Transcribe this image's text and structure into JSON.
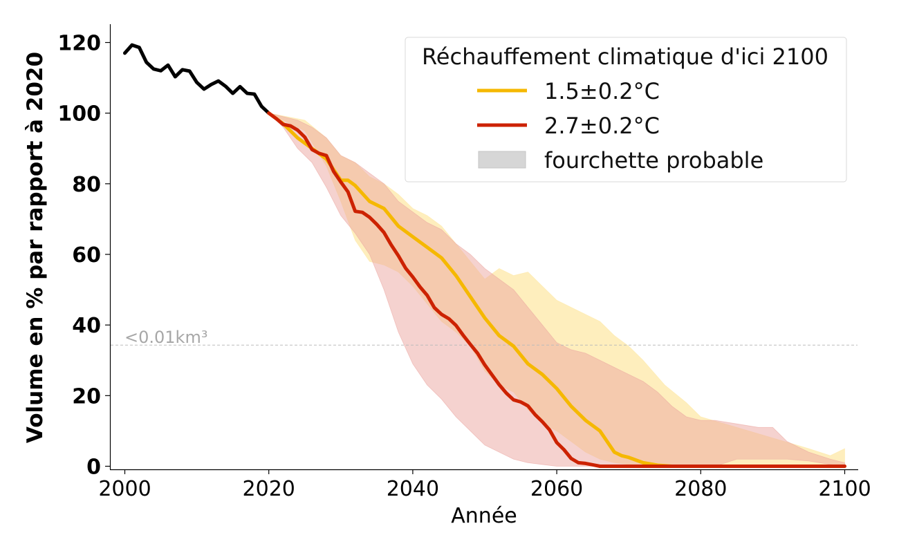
{
  "colors": {
    "historical": "#000000",
    "scenario_15": "#f5b800",
    "scenario_27": "#cc2200",
    "band_15": "#fde7a3",
    "band_27": "#eba5a0",
    "legend_band": "#d6d6d6",
    "threshold": "#bbbbbb"
  },
  "threshold": {
    "label": "<0.01km³",
    "value": 34.3
  },
  "chart_data": {
    "type": "line",
    "title": "",
    "xlabel": "Année",
    "ylabel": "Volume en % par rapport à 2020",
    "xlim": [
      1998,
      2102
    ],
    "ylim": [
      -1,
      125
    ],
    "xticks": [
      2000,
      2020,
      2040,
      2060,
      2080,
      2100
    ],
    "yticks": [
      0,
      20,
      40,
      60,
      80,
      100,
      120
    ],
    "grid": false,
    "legend": {
      "title": "Réchauffement climatique d'ici 2100",
      "placement": "top-right",
      "entries": [
        {
          "label": "1.5±0.2°C",
          "kind": "line",
          "series": "scenario_15"
        },
        {
          "label": "2.7±0.2°C",
          "kind": "line",
          "series": "scenario_27"
        },
        {
          "label": "fourchette probable",
          "kind": "band"
        }
      ]
    },
    "series": [
      {
        "id": "historical",
        "x": [
          2000,
          2001,
          2002,
          2003,
          2004,
          2005,
          2006,
          2007,
          2008,
          2009,
          2010,
          2011,
          2012,
          2013,
          2014,
          2015,
          2016,
          2017,
          2018,
          2019,
          2020
        ],
        "y": [
          117,
          119.3,
          118.6,
          114.4,
          112.5,
          112,
          113.6,
          110.3,
          112.3,
          111.9,
          108.7,
          106.8,
          108.1,
          109.1,
          107.6,
          105.6,
          107.5,
          105.6,
          105.4,
          101.9,
          100
        ]
      },
      {
        "id": "scenario_15",
        "name": "1.5±0.2°C",
        "x": [
          2020,
          2022,
          2024,
          2026,
          2028,
          2030,
          2031,
          2032,
          2034,
          2036,
          2038,
          2040,
          2042,
          2044,
          2046,
          2048,
          2050,
          2052,
          2054,
          2056,
          2058,
          2060,
          2062,
          2064,
          2066,
          2068,
          2069,
          2070,
          2072,
          2074,
          2076,
          2080,
          2090,
          2100
        ],
        "y": [
          100,
          97,
          93,
          90,
          87,
          81,
          81,
          79.5,
          75,
          73,
          68,
          65,
          62,
          59,
          54,
          48,
          42,
          37,
          34,
          29,
          26,
          22,
          17,
          13,
          10,
          4,
          3,
          2.5,
          1,
          0.3,
          0,
          0,
          0,
          0
        ]
      },
      {
        "id": "scenario_27",
        "name": "2.7±0.2°C",
        "x": [
          2020,
          2021,
          2022,
          2023,
          2024,
          2025,
          2026,
          2027,
          2028,
          2029,
          2030,
          2031,
          2032,
          2033,
          2034,
          2035,
          2036,
          2037,
          2038,
          2039,
          2040,
          2041,
          2042,
          2043,
          2044,
          2045,
          2046,
          2047,
          2048,
          2049,
          2050,
          2051,
          2052,
          2053,
          2054,
          2055,
          2056,
          2057,
          2058,
          2059,
          2060,
          2061,
          2062,
          2063,
          2064,
          2065,
          2066,
          2070,
          2080,
          2090,
          2100
        ],
        "y": [
          100,
          98.5,
          96.8,
          96.4,
          95.2,
          93.2,
          89.7,
          88.6,
          88,
          83.5,
          80.5,
          77.7,
          72.2,
          71.9,
          70.5,
          68.5,
          66.2,
          62.7,
          59.6,
          56.1,
          53.6,
          50.8,
          48.4,
          44.9,
          43,
          41.8,
          39.9,
          37.1,
          34.5,
          32,
          28.7,
          25.9,
          23.1,
          20.7,
          18.8,
          18.2,
          17.1,
          14.6,
          12.6,
          10.3,
          6.7,
          4.7,
          2.2,
          1,
          0.8,
          0.4,
          0,
          0,
          0,
          0,
          0
        ]
      }
    ],
    "bands": [
      {
        "id": "band_15",
        "x": [
          2020,
          2025,
          2028,
          2030,
          2032,
          2034,
          2036,
          2038,
          2040,
          2042,
          2044,
          2046,
          2048,
          2050,
          2052,
          2054,
          2056,
          2058,
          2060,
          2062,
          2064,
          2066,
          2068,
          2070,
          2072,
          2075,
          2078,
          2080,
          2085,
          2090,
          2095,
          2098,
          2100
        ],
        "upper": [
          100,
          98,
          93,
          88,
          86,
          82,
          80,
          77,
          73,
          71,
          68,
          63,
          58,
          53,
          56,
          54,
          55,
          51,
          47,
          45,
          43,
          41,
          37,
          34,
          30,
          23,
          18,
          14,
          11,
          8,
          5,
          3,
          5
        ],
        "lower": [
          100,
          95,
          85,
          75,
          64,
          58,
          57,
          55,
          51,
          46,
          41,
          38,
          34,
          27,
          23,
          21,
          16,
          12,
          10,
          7,
          4,
          2,
          1,
          0.5,
          0,
          0,
          0,
          0,
          0,
          0,
          0,
          0,
          0
        ]
      },
      {
        "id": "band_27",
        "x": [
          2020,
          2022,
          2024,
          2026,
          2028,
          2030,
          2032,
          2034,
          2036,
          2038,
          2040,
          2042,
          2044,
          2046,
          2048,
          2050,
          2052,
          2054,
          2056,
          2058,
          2060,
          2062,
          2064,
          2066,
          2068,
          2070,
          2072,
          2074,
          2076,
          2078,
          2080,
          2082,
          2085,
          2088,
          2090,
          2092,
          2095,
          2098,
          2100
        ],
        "upper": [
          100,
          99,
          98,
          96,
          93,
          88,
          86,
          83,
          80,
          75,
          72,
          69,
          67,
          63,
          60,
          56,
          53,
          50,
          45,
          40,
          35,
          33,
          32,
          30,
          28,
          26,
          24,
          21,
          17,
          14,
          13,
          13,
          12,
          11,
          11,
          7,
          4,
          2,
          1
        ],
        "lower": [
          100,
          96,
          90,
          86,
          79,
          71,
          66,
          60,
          50,
          38,
          29,
          23,
          19,
          14,
          10,
          6,
          4,
          2,
          1,
          0.5,
          0,
          0,
          0,
          0,
          0,
          0,
          0,
          0,
          0,
          0,
          0,
          0,
          2,
          2,
          2,
          2,
          1.5,
          0.5,
          0
        ]
      }
    ]
  }
}
